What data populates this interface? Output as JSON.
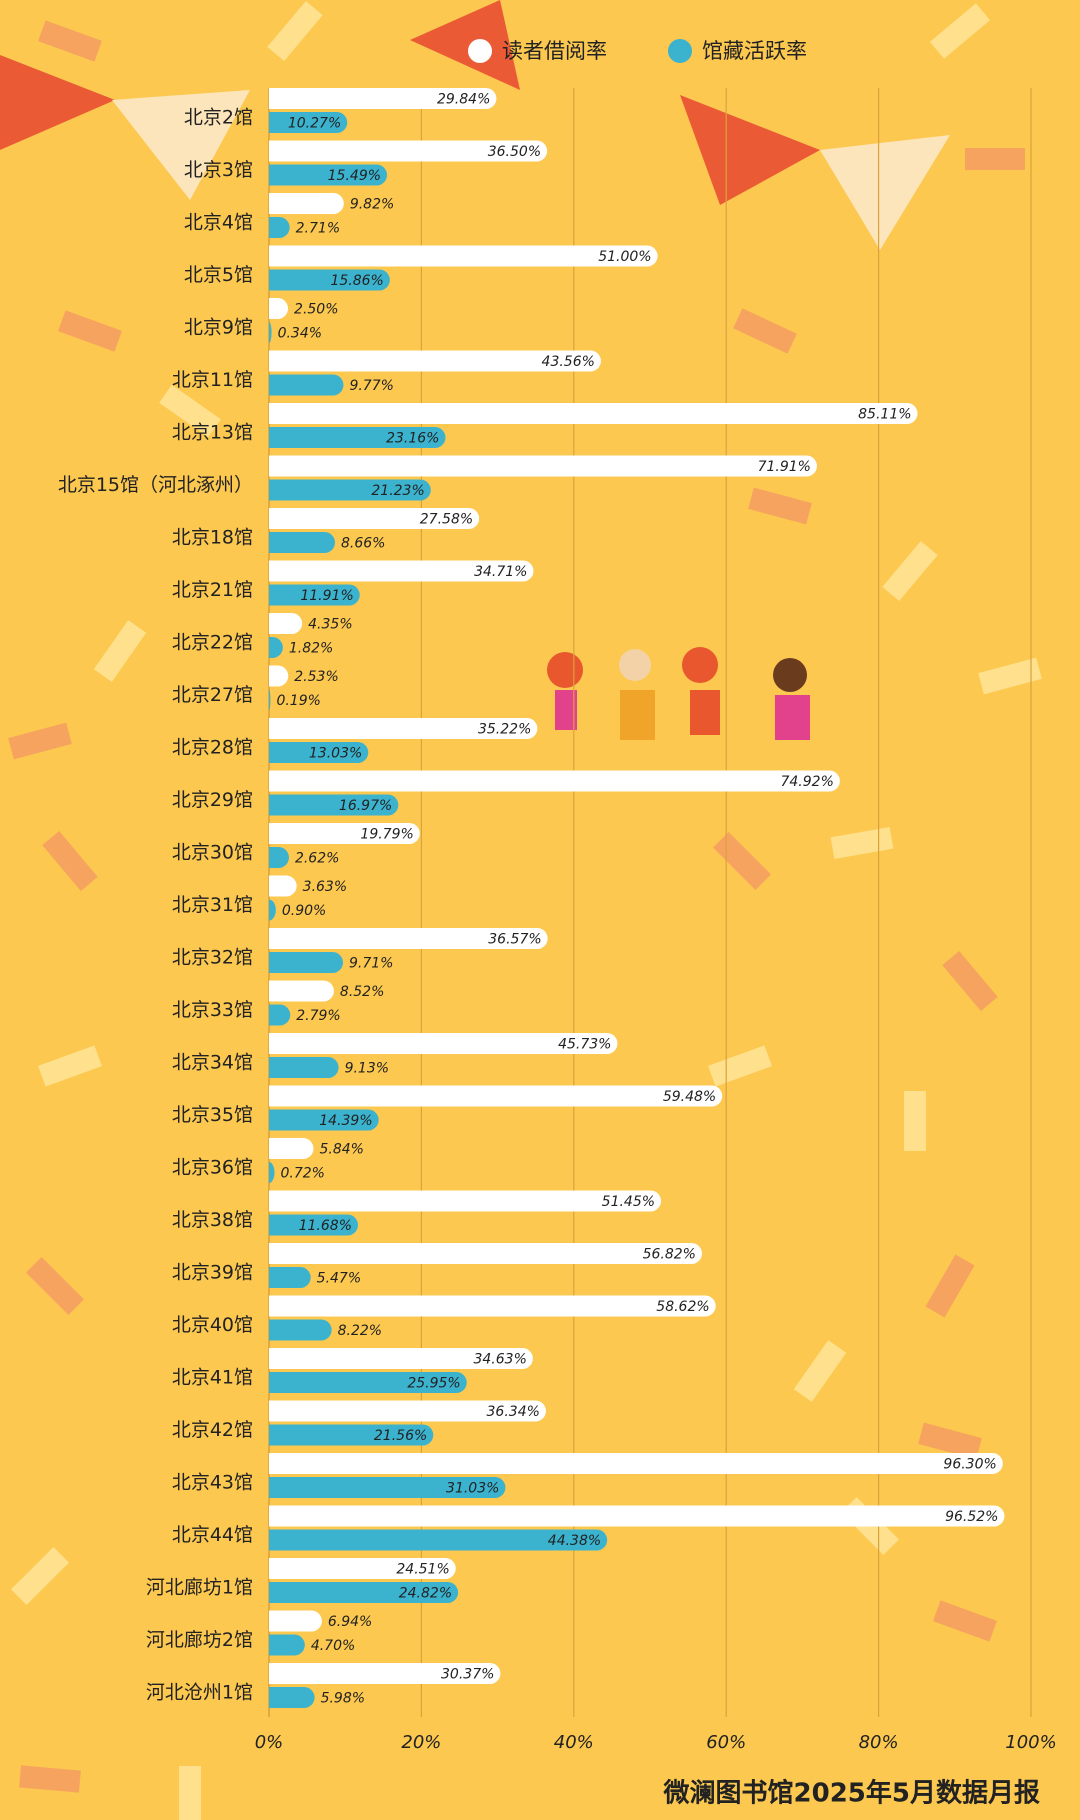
{
  "chart_data": {
    "type": "hbar-grouped",
    "footer": "微澜图书馆2025年5月数据月报",
    "categories": [
      "北京2馆",
      "北京3馆",
      "北京4馆",
      "北京5馆",
      "北京9馆",
      "北京11馆",
      "北京13馆",
      "北京15馆（河北涿州）",
      "北京18馆",
      "北京21馆",
      "北京22馆",
      "北京27馆",
      "北京28馆",
      "北京29馆",
      "北京30馆",
      "北京31馆",
      "北京32馆",
      "北京33馆",
      "北京34馆",
      "北京35馆",
      "北京36馆",
      "北京38馆",
      "北京39馆",
      "北京40馆",
      "北京41馆",
      "北京42馆",
      "北京43馆",
      "北京44馆",
      "河北廊坊1馆",
      "河北廊坊2馆",
      "河北沧州1馆"
    ],
    "series": [
      {
        "name": "读者借阅率",
        "color": "#ffffff",
        "values": [
          29.84,
          36.5,
          9.82,
          51,
          2.5,
          43.56,
          85.11,
          71.91,
          27.58,
          34.71,
          4.35,
          2.53,
          35.22,
          74.92,
          19.79,
          3.63,
          36.57,
          8.52,
          45.73,
          59.48,
          5.84,
          51.45,
          56.82,
          58.62,
          34.63,
          36.34,
          96.3,
          96.52,
          24.51,
          6.94,
          30.37
        ],
        "value_labels": [
          "29.84%",
          "36.50%",
          "9.82%",
          "51.00%",
          "2.50%",
          "43.56%",
          "85.11%",
          "71.91%",
          "27.58%",
          "34.71%",
          "4.35%",
          "2.53%",
          "35.22%",
          "74.92%",
          "19.79%",
          "3.63%",
          "36.57%",
          "8.52%",
          "45.73%",
          "59.48%",
          "5.84%",
          "51.45%",
          "56.82%",
          "58.62%",
          "34.63%",
          "36.34%",
          "96.30%",
          "96.52%",
          "24.51%",
          "6.94%",
          "30.37%"
        ]
      },
      {
        "name": "馆藏活跃率",
        "color": "#3bb3cf",
        "values": [
          10.27,
          15.49,
          2.71,
          15.86,
          0.34,
          9.77,
          23.16,
          21.23,
          8.66,
          11.91,
          1.82,
          0.19,
          13.03,
          16.97,
          2.62,
          0.9,
          9.71,
          2.79,
          9.13,
          14.39,
          0.72,
          11.68,
          5.47,
          8.22,
          25.95,
          21.56,
          31.03,
          44.38,
          24.82,
          4.7,
          5.98
        ],
        "value_labels": [
          "10.27%",
          "15.49%",
          "2.71%",
          "15.86%",
          "0.34%",
          "9.77%",
          "23.16%",
          "21.23%",
          "8.66%",
          "11.91%",
          "1.82%",
          "0.19%",
          "13.03%",
          "16.97%",
          "2.62%",
          "0.90%",
          "9.71%",
          "2.79%",
          "9.13%",
          "14.39%",
          "0.72%",
          "11.68%",
          "5.47%",
          "8.22%",
          "25.95%",
          "21.56%",
          "31.03%",
          "44.38%",
          "24.82%",
          "4.70%",
          "5.98%"
        ]
      }
    ],
    "xlim": [
      0,
      100
    ],
    "xticks": [
      {
        "value": 0,
        "label": "0%"
      },
      {
        "value": 20,
        "label": "20%"
      },
      {
        "value": 40,
        "label": "40%"
      },
      {
        "value": 60,
        "label": "60%"
      },
      {
        "value": 80,
        "label": "80%"
      },
      {
        "value": 100,
        "label": "100%"
      }
    ],
    "grid": true,
    "legend": "top"
  }
}
